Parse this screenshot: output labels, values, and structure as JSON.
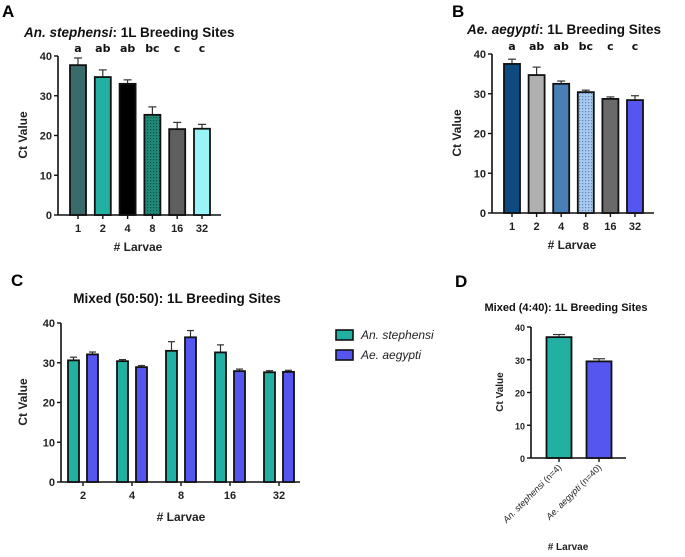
{
  "chart_data": [
    {
      "panel": "A",
      "type": "bar",
      "title_italic": "An. stephensi",
      "title_rest": ": 1L Breeding Sites",
      "xlabel": "# Larvae",
      "ylabel": "Ct Value",
      "ylim": [
        0,
        40
      ],
      "yticks": [
        0,
        10,
        20,
        30,
        40
      ],
      "categories": [
        "1",
        "2",
        "4",
        "8",
        "16",
        "32"
      ],
      "values": [
        37.7,
        34.7,
        33.0,
        25.2,
        21.6,
        21.7
      ],
      "error_upper": [
        39.5,
        36.5,
        34.0,
        27.2,
        23.3,
        22.8
      ],
      "significance": [
        "a",
        "ab",
        "ab",
        "bc",
        "c",
        "c"
      ],
      "colors": [
        "#3a6b6b",
        "#22b0a2",
        "#000000",
        "#1f8a78",
        "#5f5f5f",
        "#9af3f7"
      ],
      "patterned": [
        false,
        false,
        false,
        true,
        false,
        false
      ]
    },
    {
      "panel": "B",
      "type": "bar",
      "title_italic": "Ae. aegypti",
      "title_rest": ": 1L Breeding Sites",
      "xlabel": "# Larvae",
      "ylabel": "Ct Value",
      "ylim": [
        0,
        40
      ],
      "yticks": [
        0,
        10,
        20,
        30,
        40
      ],
      "categories": [
        "1",
        "2",
        "4",
        "8",
        "16",
        "32"
      ],
      "values": [
        37.5,
        34.7,
        32.5,
        30.4,
        28.7,
        28.4
      ],
      "error_upper": [
        38.7,
        36.7,
        33.2,
        30.9,
        29.2,
        29.5
      ],
      "significance": [
        "a",
        "ab",
        "ab",
        "bc",
        "c",
        "c"
      ],
      "colors": [
        "#0c4a80",
        "#b0b0b0",
        "#4a7fb6",
        "#a8c8ec",
        "#6a6a6a",
        "#5555f0"
      ],
      "patterned": [
        false,
        false,
        false,
        true,
        false,
        false
      ]
    },
    {
      "panel": "C",
      "type": "bar",
      "title": "Mixed (50:50): 1L Breeding Sites",
      "xlabel": "# Larvae",
      "ylabel": "Ct Value",
      "ylim": [
        0,
        40
      ],
      "yticks": [
        0,
        10,
        20,
        30,
        40
      ],
      "categories": [
        "2",
        "4",
        "8",
        "16",
        "32"
      ],
      "legend_position": "right",
      "series": [
        {
          "name": "An. stephensi",
          "color": "#22b0a2",
          "values": [
            30.6,
            30.4,
            33.0,
            32.6,
            27.6
          ],
          "error_upper": [
            31.4,
            30.8,
            35.3,
            34.5,
            28.0
          ]
        },
        {
          "name": "Ae. aegypti",
          "color": "#5555f0",
          "values": [
            32.1,
            28.9,
            36.4,
            27.9,
            27.7
          ],
          "error_upper": [
            32.7,
            29.3,
            38.1,
            28.4,
            28.1
          ]
        }
      ]
    },
    {
      "panel": "D",
      "type": "bar",
      "title": "Mixed (4:40): 1L Breeding Sites",
      "xlabel": "# Larvae",
      "ylabel": "Ct Value",
      "ylim": [
        0,
        40
      ],
      "yticks": [
        0,
        10,
        20,
        30,
        40
      ],
      "categories": [
        "An. stephensi (n=4)",
        "Ae. aegypti (n=40)"
      ],
      "values": [
        36.9,
        29.5
      ],
      "error_upper": [
        37.7,
        30.3
      ],
      "colors": [
        "#22b0a2",
        "#5555f0"
      ]
    }
  ]
}
